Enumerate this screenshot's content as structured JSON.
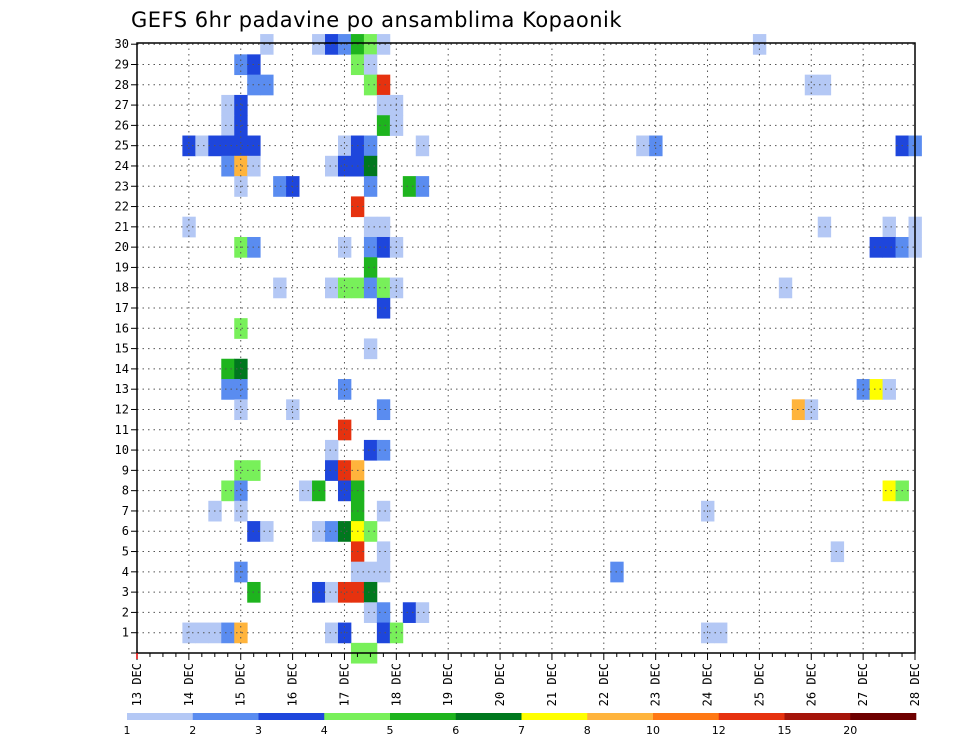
{
  "chart_data": {
    "type": "heatmap",
    "title": "GEFS 6hr padavine po ansamblima Kopaonik",
    "x_tick_labels": [
      "13 DEC",
      "14 DEC",
      "15 DEC",
      "16 DEC",
      "17 DEC",
      "18 DEC",
      "19 DEC",
      "20 DEC",
      "21 DEC",
      "22 DEC",
      "23 DEC",
      "24 DEC",
      "25 DEC",
      "26 DEC",
      "27 DEC",
      "28 DEC"
    ],
    "y_tick_labels": [
      "1",
      "2",
      "3",
      "4",
      "5",
      "6",
      "7",
      "8",
      "9",
      "10",
      "11",
      "12",
      "13",
      "14",
      "15",
      "16",
      "17",
      "18",
      "19",
      "20",
      "21",
      "22",
      "23",
      "24",
      "25",
      "26",
      "27",
      "28",
      "29",
      "30"
    ],
    "x_axis": {
      "unit": "6hr steps",
      "range_steps": [
        0,
        60
      ]
    },
    "y_axis": {
      "range": [
        0,
        30
      ]
    },
    "legend": {
      "placement": "bottom",
      "colors": [
        "#b4c8f5",
        "#5a8cf0",
        "#1e46dc",
        "#78f05a",
        "#1eb41e",
        "#00781e",
        "#ffff00",
        "#ffb43c",
        "#ff7814",
        "#e6320f",
        "#a5140a",
        "#6e0000"
      ],
      "labels": [
        "1",
        "2",
        "3",
        "4",
        "5",
        "6",
        "7",
        "8",
        "10",
        "12",
        "15",
        "20"
      ]
    },
    "grid": true,
    "cells": [
      [
        30,
        10,
        1
      ],
      [
        30,
        14,
        1
      ],
      [
        30,
        15,
        3
      ],
      [
        30,
        16,
        2
      ],
      [
        30,
        17,
        5
      ],
      [
        30,
        18,
        4
      ],
      [
        30,
        19,
        1
      ],
      [
        30,
        48,
        1
      ],
      [
        29,
        8,
        2
      ],
      [
        29,
        9,
        3
      ],
      [
        29,
        17,
        4
      ],
      [
        29,
        18,
        1
      ],
      [
        28,
        9,
        2
      ],
      [
        28,
        10,
        2
      ],
      [
        28,
        18,
        4
      ],
      [
        28,
        19,
        10
      ],
      [
        28,
        52,
        1
      ],
      [
        28,
        53,
        1
      ],
      [
        27,
        7,
        1
      ],
      [
        27,
        8,
        3
      ],
      [
        27,
        19,
        1
      ],
      [
        27,
        20,
        1
      ],
      [
        26,
        7,
        1
      ],
      [
        26,
        8,
        3
      ],
      [
        26,
        19,
        5
      ],
      [
        26,
        20,
        1
      ],
      [
        25,
        4,
        3
      ],
      [
        25,
        5,
        1
      ],
      [
        25,
        6,
        3
      ],
      [
        25,
        7,
        3
      ],
      [
        25,
        8,
        3
      ],
      [
        25,
        9,
        3
      ],
      [
        25,
        16,
        1
      ],
      [
        25,
        17,
        3
      ],
      [
        25,
        18,
        2
      ],
      [
        25,
        22,
        1
      ],
      [
        25,
        39,
        1
      ],
      [
        25,
        40,
        2
      ],
      [
        25,
        59,
        3
      ],
      [
        25,
        60,
        2
      ],
      [
        24,
        7,
        2
      ],
      [
        24,
        8,
        8
      ],
      [
        24,
        9,
        1
      ],
      [
        24,
        15,
        1
      ],
      [
        24,
        16,
        3
      ],
      [
        24,
        17,
        3
      ],
      [
        24,
        18,
        6
      ],
      [
        23,
        8,
        1
      ],
      [
        23,
        11,
        2
      ],
      [
        23,
        12,
        3
      ],
      [
        23,
        18,
        2
      ],
      [
        23,
        21,
        5
      ],
      [
        23,
        22,
        2
      ],
      [
        22,
        17,
        10
      ],
      [
        21,
        4,
        1
      ],
      [
        21,
        18,
        1
      ],
      [
        21,
        19,
        1
      ],
      [
        21,
        53,
        1
      ],
      [
        21,
        58,
        1
      ],
      [
        21,
        60,
        1
      ],
      [
        20,
        8,
        4
      ],
      [
        20,
        9,
        2
      ],
      [
        20,
        16,
        1
      ],
      [
        20,
        18,
        2
      ],
      [
        20,
        19,
        3
      ],
      [
        20,
        20,
        1
      ],
      [
        20,
        57,
        3
      ],
      [
        20,
        58,
        3
      ],
      [
        20,
        59,
        2
      ],
      [
        20,
        60,
        1
      ],
      [
        19,
        18,
        5
      ],
      [
        18,
        11,
        1
      ],
      [
        18,
        15,
        1
      ],
      [
        18,
        16,
        4
      ],
      [
        18,
        17,
        4
      ],
      [
        18,
        18,
        2
      ],
      [
        18,
        19,
        4
      ],
      [
        18,
        20,
        1
      ],
      [
        18,
        50,
        1
      ],
      [
        17,
        19,
        3
      ],
      [
        16,
        8,
        4
      ],
      [
        15,
        18,
        1
      ],
      [
        14,
        7,
        5
      ],
      [
        14,
        8,
        6
      ],
      [
        13,
        7,
        2
      ],
      [
        13,
        8,
        2
      ],
      [
        13,
        16,
        2
      ],
      [
        13,
        56,
        2
      ],
      [
        13,
        57,
        7
      ],
      [
        13,
        58,
        1
      ],
      [
        12,
        8,
        1
      ],
      [
        12,
        12,
        1
      ],
      [
        12,
        19,
        2
      ],
      [
        12,
        51,
        8
      ],
      [
        12,
        52,
        1
      ],
      [
        11,
        16,
        10
      ],
      [
        10,
        15,
        1
      ],
      [
        10,
        18,
        3
      ],
      [
        10,
        19,
        2
      ],
      [
        9,
        8,
        4
      ],
      [
        9,
        9,
        4
      ],
      [
        9,
        15,
        3
      ],
      [
        9,
        16,
        10
      ],
      [
        9,
        17,
        8
      ],
      [
        8,
        7,
        4
      ],
      [
        8,
        8,
        2
      ],
      [
        8,
        13,
        1
      ],
      [
        8,
        14,
        5
      ],
      [
        8,
        16,
        3
      ],
      [
        8,
        17,
        5
      ],
      [
        8,
        58,
        7
      ],
      [
        8,
        59,
        4
      ],
      [
        7,
        6,
        1
      ],
      [
        7,
        8,
        1
      ],
      [
        7,
        17,
        5
      ],
      [
        7,
        19,
        1
      ],
      [
        7,
        44,
        1
      ],
      [
        6,
        9,
        3
      ],
      [
        6,
        10,
        1
      ],
      [
        6,
        14,
        1
      ],
      [
        6,
        15,
        2
      ],
      [
        6,
        16,
        6
      ],
      [
        6,
        17,
        7
      ],
      [
        6,
        18,
        4
      ],
      [
        5,
        17,
        10
      ],
      [
        5,
        19,
        1
      ],
      [
        5,
        54,
        1
      ],
      [
        4,
        8,
        2
      ],
      [
        4,
        17,
        1
      ],
      [
        4,
        18,
        1
      ],
      [
        4,
        19,
        1
      ],
      [
        4,
        37,
        2
      ],
      [
        3,
        9,
        5
      ],
      [
        3,
        14,
        3
      ],
      [
        3,
        15,
        1
      ],
      [
        3,
        16,
        10
      ],
      [
        3,
        17,
        10
      ],
      [
        3,
        18,
        6
      ],
      [
        2,
        18,
        1
      ],
      [
        2,
        19,
        2
      ],
      [
        2,
        21,
        3
      ],
      [
        2,
        22,
        1
      ],
      [
        1,
        4,
        1
      ],
      [
        1,
        5,
        1
      ],
      [
        1,
        6,
        1
      ],
      [
        1,
        7,
        2
      ],
      [
        1,
        8,
        8
      ],
      [
        1,
        15,
        1
      ],
      [
        1,
        16,
        3
      ],
      [
        1,
        19,
        3
      ],
      [
        1,
        20,
        4
      ],
      [
        1,
        44,
        1
      ],
      [
        1,
        45,
        1
      ],
      [
        0,
        17,
        4
      ],
      [
        0,
        18,
        4
      ]
    ]
  }
}
